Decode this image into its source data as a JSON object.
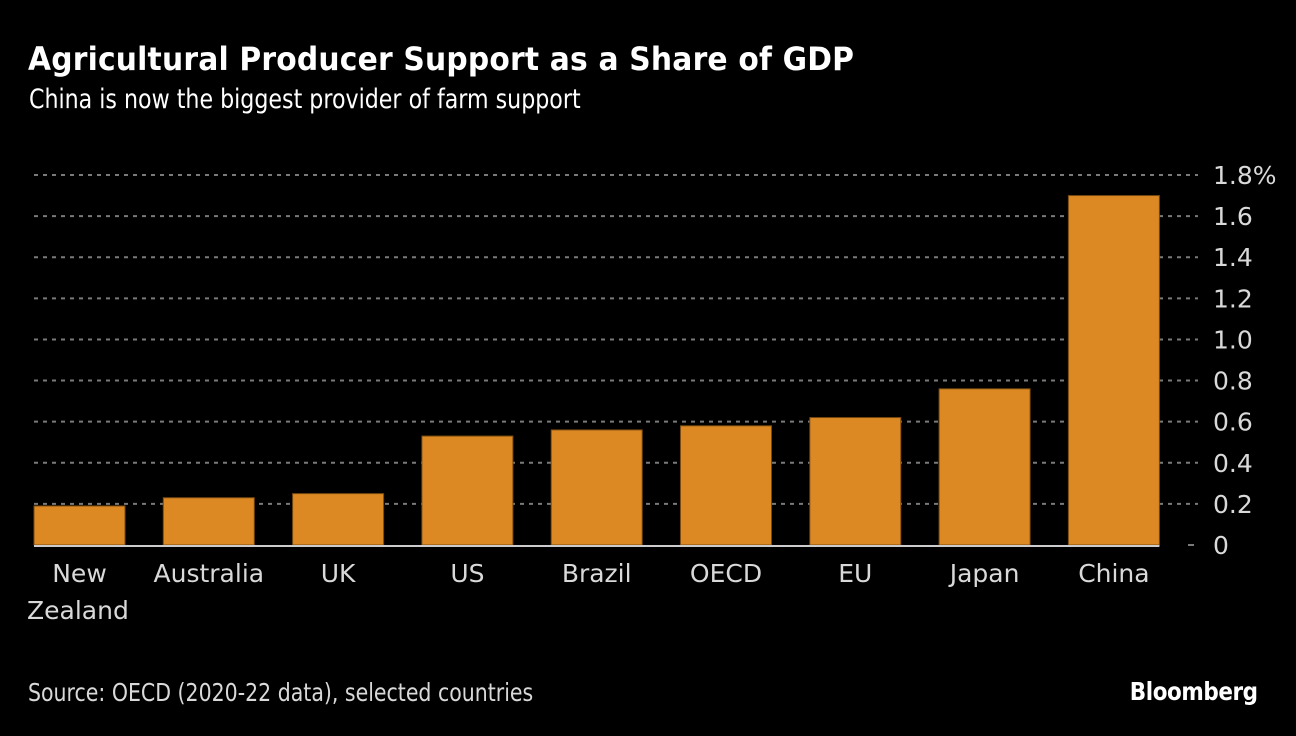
{
  "header": {
    "title": "Agricultural Producer Support as a Share of GDP",
    "subtitle": "China is now the biggest provider of farm support"
  },
  "footer": {
    "source": "Source: OECD (2020-22 data), selected countries",
    "brand": "Bloomberg"
  },
  "colors": {
    "background": "#000000",
    "bar": "#DC8924",
    "grid": "#7a7a7a",
    "axis_text": "#d9d9d9",
    "baseline": "#cccccc"
  },
  "chart_data": {
    "type": "bar",
    "title": "Agricultural Producer Support as a Share of GDP",
    "subtitle": "China is now the biggest provider of farm support",
    "categories": [
      "New Zealand",
      "Australia",
      "UK",
      "US",
      "Brazil",
      "OECD",
      "EU",
      "Japan",
      "China"
    ],
    "category_lines": [
      [
        "New",
        "Zealand"
      ],
      [
        "Australia"
      ],
      [
        "UK"
      ],
      [
        "US"
      ],
      [
        "Brazil"
      ],
      [
        "OECD"
      ],
      [
        "EU"
      ],
      [
        "Japan"
      ],
      [
        "China"
      ]
    ],
    "values": [
      0.19,
      0.23,
      0.25,
      0.53,
      0.56,
      0.58,
      0.62,
      0.76,
      1.7
    ],
    "unit": "%",
    "xlabel": "",
    "ylabel": "",
    "ylim": [
      0,
      1.8
    ],
    "yticks": [
      0,
      0.2,
      0.4,
      0.6,
      0.8,
      1.0,
      1.2,
      1.4,
      1.6,
      1.8
    ],
    "ytick_labels": [
      "0",
      "0.2",
      "0.4",
      "0.6",
      "0.8",
      "1.0",
      "1.2",
      "1.4",
      "1.6",
      "1.8%"
    ],
    "grid": true,
    "y_axis_side": "right",
    "legend": "none"
  }
}
